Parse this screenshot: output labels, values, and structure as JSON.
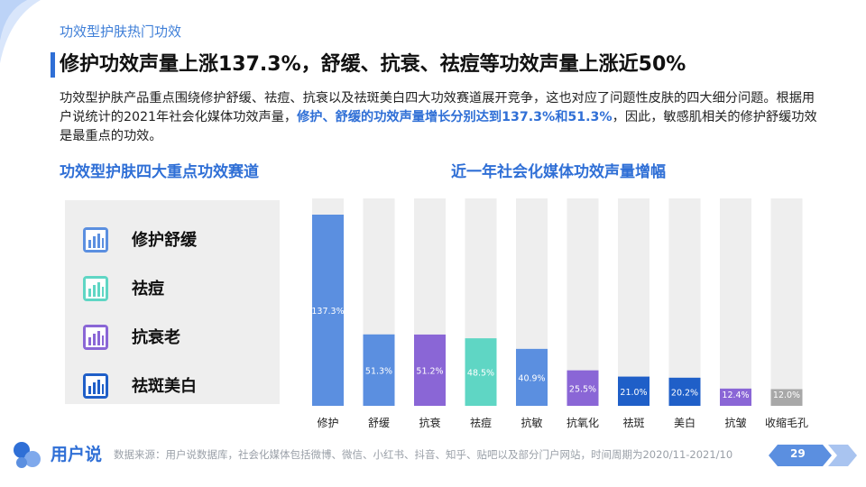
{
  "section_tag": "功效型护肤热门功效",
  "title": "修护功效声量上涨137.3%，舒缓、抗衰、祛痘等功效声量上涨近50%",
  "description": {
    "part1": "功效型护肤产品重点围绕修护舒缓、祛痘、抗衰以及祛斑美白四大功效赛道展开竞争，这也对应了问题性皮肤的四大细分问题。根据用户说统计的2021年社会化媒体功效声量，",
    "highlight": "修护、舒缓的功效声量增长分别达到137.3%和51.3%",
    "part2": "，因此，敏感肌相关的修护舒缓功效是最重点的功效。"
  },
  "left_heading": "功效型护肤四大重点功效赛道",
  "right_heading": "近一年社会化媒体功效声量增幅",
  "tracks": [
    {
      "label": "修护舒缓",
      "color": "#5b8fe0"
    },
    {
      "label": "祛痘",
      "color": "#5fd6c4"
    },
    {
      "label": "抗衰老",
      "color": "#8a66d6"
    },
    {
      "label": "祛斑美白",
      "color": "#1f5fc8"
    }
  ],
  "chart_data": {
    "type": "bar",
    "title": "近一年社会化媒体功效声量增幅",
    "categories": [
      "修护",
      "舒缓",
      "抗衰",
      "祛痘",
      "抗敏",
      "抗氧化",
      "祛斑",
      "美白",
      "抗皱",
      "收缩毛孔"
    ],
    "values": [
      137.3,
      51.3,
      51.2,
      48.5,
      40.9,
      25.5,
      21.0,
      20.2,
      12.4,
      12.0
    ],
    "value_labels": [
      "137.3%",
      "51.3%",
      "51.2%",
      "48.5%",
      "40.9%",
      "25.5%",
      "21.0%",
      "20.2%",
      "12.4%",
      "12.0%"
    ],
    "colors": [
      "#5b8fe0",
      "#5b8fe0",
      "#8a66d6",
      "#5fd6c4",
      "#5b8fe0",
      "#8a66d6",
      "#1f5fc8",
      "#1f5fc8",
      "#8a66d6",
      "#a8a8a8"
    ],
    "track_color": "#eeeeee",
    "ylim": [
      0,
      137.3
    ]
  },
  "footer": {
    "brand": "用户说",
    "source": "数据来源：用户说数据库，社会化媒体包括微博、微信、小红书、抖音、知乎、贴吧以及部分门户网站，时间周期为2020/11-2021/10",
    "page": "29"
  }
}
